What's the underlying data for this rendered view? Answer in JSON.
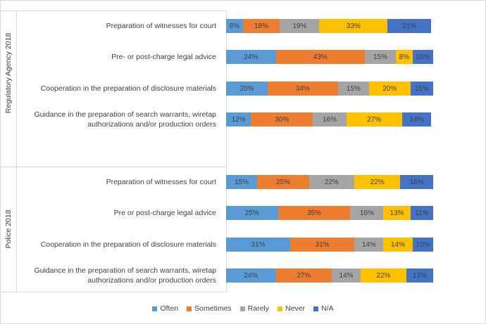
{
  "chart_data": {
    "type": "stacked-bar",
    "groups": [
      "Regulatory Agency 2018",
      "Police 2018"
    ],
    "categories": [
      "Preparation of witnesses for court",
      "Pre- or post-charge legal advice",
      "Cooperation in the preparation of disclosure materials",
      "Guidance in the preparation of search warrants, wiretap authorizations and/or production orders",
      "Preparation of witnesses for court",
      "Pre or post-charge legal advice",
      "Cooperation in the preparation of disclosure materials",
      "Guidance in the preparation of search warrants, wiretap authorizations and/or production orders"
    ],
    "series": [
      {
        "name": "Often",
        "color": "#5b9bd5",
        "values": [
          8,
          24,
          20,
          12,
          15,
          25,
          31,
          24
        ],
        "value_labels": [
          "8%",
          "24%",
          "20%",
          "12%",
          "15%",
          "25%",
          "31%",
          "24%"
        ]
      },
      {
        "name": "Sometimes",
        "color": "#ed7d31",
        "values": [
          18,
          43,
          34,
          30,
          25,
          35,
          31,
          27
        ],
        "value_labels": [
          "18%",
          "43%",
          "34%",
          "30%",
          "25%",
          "35%",
          "31%",
          "27%"
        ]
      },
      {
        "name": "Rarely",
        "color": "#a5a5a5",
        "values": [
          19,
          15,
          15,
          16,
          22,
          16,
          14,
          14
        ],
        "value_labels": [
          "19%",
          "15%",
          "15%",
          "16%",
          "22%",
          "16%",
          "14%",
          "14%"
        ]
      },
      {
        "name": "Never",
        "color": "#ffc000",
        "values": [
          33,
          8,
          20,
          27,
          22,
          13,
          14,
          22
        ],
        "value_labels": [
          "33%",
          "8%",
          "20%",
          "27%",
          "22%",
          "13%",
          "14%",
          "22%"
        ]
      },
      {
        "name": "N/A",
        "color": "#4472c4",
        "values": [
          21,
          10,
          11,
          14,
          16,
          11,
          10,
          13
        ],
        "value_labels": [
          "21%",
          "10%",
          "11%",
          "14%",
          "16%",
          "11%",
          "10%",
          "13%"
        ]
      }
    ]
  }
}
